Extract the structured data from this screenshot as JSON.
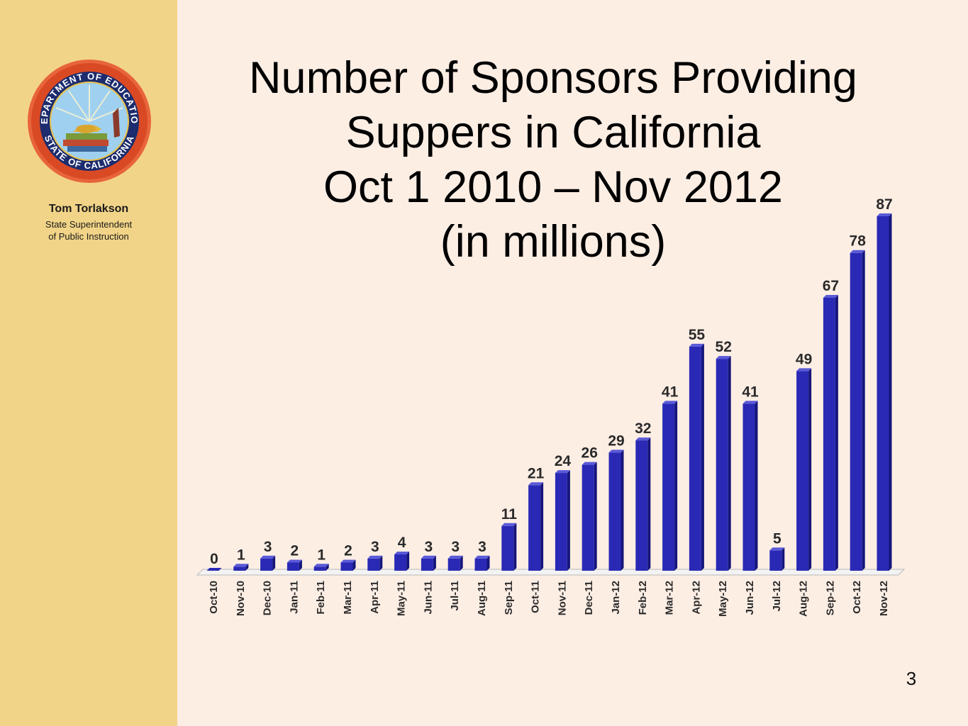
{
  "sidebar": {
    "presenter_name": "Tom Torlakson",
    "presenter_title_line1": "State Superintendent",
    "presenter_title_line2": "of Public Instruction",
    "seal_text": "DEPARTMENT OF EDUCATION • STATE OF CALIFORNIA"
  },
  "slide": {
    "page_number": "3"
  },
  "colors": {
    "sidebar_bg": "#f2d488",
    "slide_bg": "#fdeee4",
    "bar_front": "#2a29b5",
    "bar_top": "#5a5ad8",
    "bar_side": "#15157a"
  },
  "chart_data": {
    "type": "bar",
    "title_lines": [
      "Number of Sponsors Providing",
      "Suppers in California",
      "Oct 1 2010 – Nov 2012",
      "(in millions)"
    ],
    "categories": [
      "Oct-10",
      "Nov-10",
      "Dec-10",
      "Jan-11",
      "Feb-11",
      "Mar-11",
      "Apr-11",
      "May-11",
      "Jun-11",
      "Jul-11",
      "Aug-11",
      "Sep-11",
      "Oct-11",
      "Nov-11",
      "Dec-11",
      "Jan-12",
      "Feb-12",
      "Mar-12",
      "Apr-12",
      "May-12",
      "Jun-12",
      "Jul-12",
      "Aug-12",
      "Sep-12",
      "Oct-12",
      "Nov-12"
    ],
    "values": [
      0,
      1,
      3,
      2,
      1,
      2,
      3,
      4,
      3,
      3,
      3,
      11,
      21,
      24,
      26,
      29,
      32,
      41,
      55,
      52,
      41,
      5,
      49,
      67,
      78,
      87
    ],
    "ylim": [
      0,
      87
    ],
    "grid": false,
    "legend": "none",
    "data_labels": true,
    "style": "3d"
  }
}
